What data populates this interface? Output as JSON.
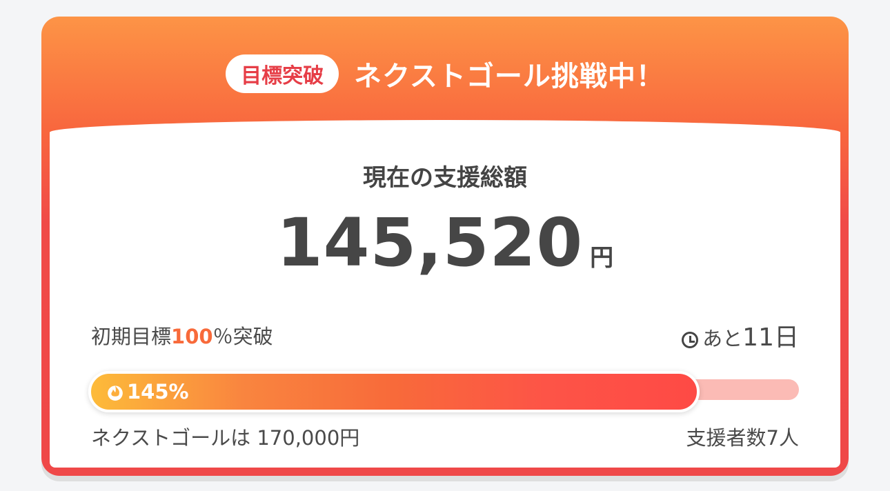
{
  "header": {
    "badge": "目標突破",
    "title": "ネクストゴール挑戦中！"
  },
  "summary": {
    "label": "現在の支援総額",
    "amount": "145,520",
    "unit": "円"
  },
  "goal": {
    "prefix": "初期目標",
    "percent": "100",
    "suffix": "％突破"
  },
  "remaining": {
    "prefix": "あと",
    "days": "11",
    "unit": "日",
    "icon": "clock-icon"
  },
  "progress": {
    "label": "145%",
    "fill_percent_of_next_goal": 85.6,
    "icon": "flame-icon",
    "colors": {
      "start": "#fdbb3a",
      "end": "#fe4a45",
      "track": "#fbbbb5"
    }
  },
  "footer": {
    "next_goal": "ネクストゴールは 170,000円",
    "supporters": "支援者数7人"
  },
  "colors": {
    "accent": "#ef4848",
    "highlight": "#f86a3a"
  }
}
